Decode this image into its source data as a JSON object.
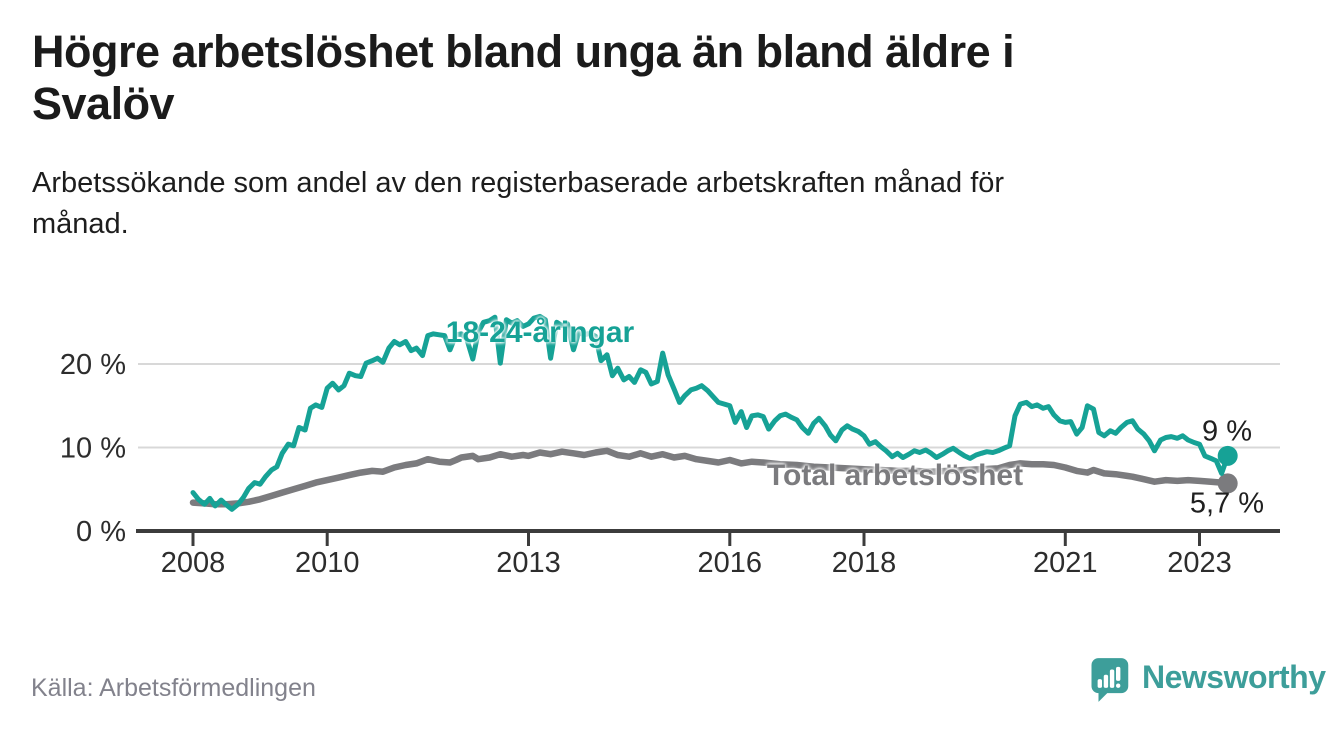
{
  "header": {
    "title": "Högre arbetslöshet bland unga än bland äldre i\nSvalöv",
    "subtitle": "Arbetssökande som andel av den registerbaserade arbetskraften månad för\nmånad."
  },
  "footer": {
    "source": "Källa: Arbetsförmedlingen",
    "brand": "Newsworthy"
  },
  "colors": {
    "youth": "#16a296",
    "total": "#7b7b7e",
    "grid": "#d8d8d8",
    "axis": "#3c3c3c",
    "tick_text": "#2d2d2d",
    "end_label_text": "#202020",
    "muted": "#82828c",
    "brand": "#3d9e9a"
  },
  "chart_data": {
    "type": "line",
    "unit": "%",
    "x_range": [
      2008.0,
      2023.42
    ],
    "ylim": [
      0,
      27
    ],
    "grid": "horizontal-only",
    "legend_position": "inline-labels",
    "yticks": [
      {
        "value": 0,
        "label": "0 %"
      },
      {
        "value": 10,
        "label": "10 %"
      },
      {
        "value": 20,
        "label": "20 %"
      }
    ],
    "xticks": [
      {
        "value": 2008,
        "label": "2008"
      },
      {
        "value": 2010,
        "label": "2010"
      },
      {
        "value": 2013,
        "label": "2013"
      },
      {
        "value": 2016,
        "label": "2016"
      },
      {
        "value": 2018,
        "label": "2018"
      },
      {
        "value": 2021,
        "label": "2021"
      },
      {
        "value": 2023,
        "label": "2023"
      }
    ],
    "series": [
      {
        "name": "18-24-åringar",
        "label": "18-24-åringar",
        "end_label": "9 %",
        "end_value": 9.0,
        "color_key": "youth",
        "stroke_width": 5,
        "points": [
          [
            2008.0,
            4.6
          ],
          [
            2008.08,
            3.8
          ],
          [
            2008.17,
            3.2
          ],
          [
            2008.25,
            3.9
          ],
          [
            2008.33,
            3.0
          ],
          [
            2008.42,
            3.7
          ],
          [
            2008.5,
            3.1
          ],
          [
            2008.58,
            2.6
          ],
          [
            2008.67,
            3.2
          ],
          [
            2008.75,
            4.0
          ],
          [
            2008.83,
            5.1
          ],
          [
            2008.92,
            5.8
          ],
          [
            2009.0,
            5.6
          ],
          [
            2009.08,
            6.5
          ],
          [
            2009.17,
            7.3
          ],
          [
            2009.25,
            7.7
          ],
          [
            2009.33,
            9.3
          ],
          [
            2009.42,
            10.4
          ],
          [
            2009.5,
            10.2
          ],
          [
            2009.58,
            12.4
          ],
          [
            2009.67,
            12.1
          ],
          [
            2009.75,
            14.7
          ],
          [
            2009.83,
            15.1
          ],
          [
            2009.92,
            14.8
          ],
          [
            2010.0,
            17.1
          ],
          [
            2010.08,
            17.7
          ],
          [
            2010.17,
            16.9
          ],
          [
            2010.25,
            17.4
          ],
          [
            2010.33,
            18.9
          ],
          [
            2010.42,
            18.6
          ],
          [
            2010.5,
            18.5
          ],
          [
            2010.58,
            20.1
          ],
          [
            2010.67,
            20.4
          ],
          [
            2010.75,
            20.7
          ],
          [
            2010.83,
            20.2
          ],
          [
            2010.92,
            21.9
          ],
          [
            2011.0,
            22.7
          ],
          [
            2011.08,
            22.3
          ],
          [
            2011.17,
            22.7
          ],
          [
            2011.25,
            21.6
          ],
          [
            2011.33,
            21.9
          ],
          [
            2011.42,
            21.0
          ],
          [
            2011.5,
            23.4
          ],
          [
            2011.58,
            23.6
          ],
          [
            2011.67,
            23.5
          ],
          [
            2011.75,
            23.4
          ],
          [
            2011.83,
            21.7
          ],
          [
            2011.92,
            23.5
          ],
          [
            2012.0,
            23.6
          ],
          [
            2012.08,
            23.0
          ],
          [
            2012.17,
            20.6
          ],
          [
            2012.25,
            23.8
          ],
          [
            2012.33,
            25.0
          ],
          [
            2012.42,
            25.2
          ],
          [
            2012.5,
            25.6
          ],
          [
            2012.58,
            20.1
          ],
          [
            2012.67,
            25.3
          ],
          [
            2012.75,
            24.9
          ],
          [
            2012.83,
            25.2
          ],
          [
            2012.92,
            24.5
          ],
          [
            2013.0,
            24.8
          ],
          [
            2013.08,
            25.5
          ],
          [
            2013.17,
            25.7
          ],
          [
            2013.25,
            25.3
          ],
          [
            2013.33,
            20.7
          ],
          [
            2013.42,
            25.0
          ],
          [
            2013.5,
            24.6
          ],
          [
            2013.58,
            24.8
          ],
          [
            2013.67,
            21.7
          ],
          [
            2013.75,
            23.8
          ],
          [
            2013.83,
            23.5
          ],
          [
            2013.92,
            23.7
          ],
          [
            2014.0,
            23.3
          ],
          [
            2014.08,
            20.4
          ],
          [
            2014.17,
            21.1
          ],
          [
            2014.25,
            18.6
          ],
          [
            2014.33,
            19.5
          ],
          [
            2014.42,
            18.1
          ],
          [
            2014.5,
            18.5
          ],
          [
            2014.58,
            17.8
          ],
          [
            2014.67,
            19.3
          ],
          [
            2014.75,
            19.0
          ],
          [
            2014.83,
            17.6
          ],
          [
            2014.92,
            17.9
          ],
          [
            2015.0,
            21.3
          ],
          [
            2015.08,
            18.7
          ],
          [
            2015.17,
            17.0
          ],
          [
            2015.25,
            15.4
          ],
          [
            2015.33,
            16.2
          ],
          [
            2015.42,
            16.9
          ],
          [
            2015.5,
            17.1
          ],
          [
            2015.58,
            17.4
          ],
          [
            2015.67,
            16.8
          ],
          [
            2015.75,
            16.1
          ],
          [
            2015.83,
            15.4
          ],
          [
            2015.92,
            15.2
          ],
          [
            2016.0,
            15.0
          ],
          [
            2016.08,
            13.0
          ],
          [
            2016.17,
            14.3
          ],
          [
            2016.25,
            12.4
          ],
          [
            2016.33,
            13.8
          ],
          [
            2016.42,
            13.9
          ],
          [
            2016.5,
            13.7
          ],
          [
            2016.58,
            12.2
          ],
          [
            2016.67,
            13.2
          ],
          [
            2016.75,
            13.8
          ],
          [
            2016.83,
            14.0
          ],
          [
            2016.92,
            13.6
          ],
          [
            2017.0,
            13.3
          ],
          [
            2017.08,
            12.4
          ],
          [
            2017.17,
            11.7
          ],
          [
            2017.25,
            12.9
          ],
          [
            2017.33,
            13.5
          ],
          [
            2017.42,
            12.6
          ],
          [
            2017.5,
            11.5
          ],
          [
            2017.58,
            10.8
          ],
          [
            2017.67,
            12.1
          ],
          [
            2017.75,
            12.6
          ],
          [
            2017.83,
            12.2
          ],
          [
            2017.92,
            11.9
          ],
          [
            2018.0,
            11.4
          ],
          [
            2018.08,
            10.4
          ],
          [
            2018.17,
            10.7
          ],
          [
            2018.25,
            10.1
          ],
          [
            2018.33,
            9.6
          ],
          [
            2018.42,
            8.9
          ],
          [
            2018.5,
            9.3
          ],
          [
            2018.58,
            8.8
          ],
          [
            2018.67,
            9.2
          ],
          [
            2018.75,
            9.6
          ],
          [
            2018.83,
            9.4
          ],
          [
            2018.92,
            9.7
          ],
          [
            2019.0,
            9.3
          ],
          [
            2019.08,
            8.8
          ],
          [
            2019.17,
            9.2
          ],
          [
            2019.25,
            9.6
          ],
          [
            2019.33,
            9.9
          ],
          [
            2019.42,
            9.4
          ],
          [
            2019.5,
            9.0
          ],
          [
            2019.58,
            8.7
          ],
          [
            2019.67,
            9.1
          ],
          [
            2019.75,
            9.3
          ],
          [
            2019.83,
            9.5
          ],
          [
            2019.92,
            9.4
          ],
          [
            2020.0,
            9.6
          ],
          [
            2020.08,
            9.9
          ],
          [
            2020.17,
            10.2
          ],
          [
            2020.25,
            13.8
          ],
          [
            2020.33,
            15.2
          ],
          [
            2020.42,
            15.4
          ],
          [
            2020.5,
            14.9
          ],
          [
            2020.58,
            15.1
          ],
          [
            2020.67,
            14.7
          ],
          [
            2020.75,
            14.9
          ],
          [
            2020.83,
            13.9
          ],
          [
            2020.92,
            13.2
          ],
          [
            2021.0,
            13.0
          ],
          [
            2021.08,
            13.1
          ],
          [
            2021.17,
            11.6
          ],
          [
            2021.25,
            12.4
          ],
          [
            2021.33,
            15.0
          ],
          [
            2021.42,
            14.6
          ],
          [
            2021.5,
            11.8
          ],
          [
            2021.58,
            11.4
          ],
          [
            2021.67,
            12.0
          ],
          [
            2021.75,
            11.7
          ],
          [
            2021.83,
            12.4
          ],
          [
            2021.92,
            13.0
          ],
          [
            2022.0,
            13.2
          ],
          [
            2022.08,
            12.2
          ],
          [
            2022.17,
            11.6
          ],
          [
            2022.25,
            10.8
          ],
          [
            2022.33,
            9.6
          ],
          [
            2022.42,
            10.9
          ],
          [
            2022.5,
            11.2
          ],
          [
            2022.58,
            11.3
          ],
          [
            2022.67,
            11.1
          ],
          [
            2022.75,
            11.4
          ],
          [
            2022.83,
            10.9
          ],
          [
            2022.92,
            10.6
          ],
          [
            2023.0,
            10.4
          ],
          [
            2023.08,
            9.0
          ],
          [
            2023.17,
            8.7
          ],
          [
            2023.25,
            8.4
          ],
          [
            2023.33,
            6.9
          ],
          [
            2023.42,
            9.0
          ]
        ]
      },
      {
        "name": "Total arbetslöshet",
        "label": "Total arbetslöshet",
        "end_label": "5,7 %",
        "end_value": 5.7,
        "color_key": "total",
        "stroke_width": 6.5,
        "points": [
          [
            2008.0,
            3.4
          ],
          [
            2008.17,
            3.3
          ],
          [
            2008.33,
            3.2
          ],
          [
            2008.5,
            3.2
          ],
          [
            2008.67,
            3.3
          ],
          [
            2008.83,
            3.5
          ],
          [
            2009.0,
            3.8
          ],
          [
            2009.17,
            4.2
          ],
          [
            2009.33,
            4.6
          ],
          [
            2009.5,
            5.0
          ],
          [
            2009.67,
            5.4
          ],
          [
            2009.83,
            5.8
          ],
          [
            2010.0,
            6.1
          ],
          [
            2010.17,
            6.4
          ],
          [
            2010.33,
            6.7
          ],
          [
            2010.5,
            7.0
          ],
          [
            2010.67,
            7.2
          ],
          [
            2010.83,
            7.1
          ],
          [
            2011.0,
            7.6
          ],
          [
            2011.17,
            7.9
          ],
          [
            2011.33,
            8.1
          ],
          [
            2011.5,
            8.6
          ],
          [
            2011.67,
            8.3
          ],
          [
            2011.83,
            8.2
          ],
          [
            2011.92,
            8.5
          ],
          [
            2012.0,
            8.8
          ],
          [
            2012.17,
            9.0
          ],
          [
            2012.25,
            8.6
          ],
          [
            2012.42,
            8.8
          ],
          [
            2012.58,
            9.2
          ],
          [
            2012.75,
            8.9
          ],
          [
            2012.92,
            9.1
          ],
          [
            2013.0,
            9.0
          ],
          [
            2013.17,
            9.4
          ],
          [
            2013.33,
            9.2
          ],
          [
            2013.5,
            9.5
          ],
          [
            2013.67,
            9.3
          ],
          [
            2013.83,
            9.1
          ],
          [
            2014.0,
            9.4
          ],
          [
            2014.17,
            9.6
          ],
          [
            2014.33,
            9.1
          ],
          [
            2014.5,
            8.9
          ],
          [
            2014.67,
            9.3
          ],
          [
            2014.83,
            8.9
          ],
          [
            2015.0,
            9.2
          ],
          [
            2015.17,
            8.8
          ],
          [
            2015.33,
            9.0
          ],
          [
            2015.5,
            8.6
          ],
          [
            2015.67,
            8.4
          ],
          [
            2015.83,
            8.2
          ],
          [
            2016.0,
            8.5
          ],
          [
            2016.17,
            8.1
          ],
          [
            2016.33,
            8.3
          ],
          [
            2016.5,
            8.2
          ],
          [
            2016.75,
            8.0
          ],
          [
            2017.0,
            7.9
          ],
          [
            2017.25,
            7.7
          ],
          [
            2017.5,
            7.6
          ],
          [
            2017.75,
            7.5
          ],
          [
            2018.0,
            7.4
          ],
          [
            2018.25,
            7.3
          ],
          [
            2018.5,
            7.2
          ],
          [
            2018.75,
            7.2
          ],
          [
            2019.0,
            7.1
          ],
          [
            2019.25,
            7.2
          ],
          [
            2019.5,
            7.3
          ],
          [
            2019.75,
            7.4
          ],
          [
            2020.0,
            7.5
          ],
          [
            2020.17,
            7.9
          ],
          [
            2020.33,
            8.1
          ],
          [
            2020.5,
            8.0
          ],
          [
            2020.67,
            8.0
          ],
          [
            2020.83,
            7.9
          ],
          [
            2021.0,
            7.6
          ],
          [
            2021.17,
            7.2
          ],
          [
            2021.33,
            7.0
          ],
          [
            2021.42,
            7.3
          ],
          [
            2021.58,
            6.9
          ],
          [
            2021.75,
            6.8
          ],
          [
            2021.92,
            6.6
          ],
          [
            2022.0,
            6.5
          ],
          [
            2022.17,
            6.2
          ],
          [
            2022.33,
            5.9
          ],
          [
            2022.5,
            6.1
          ],
          [
            2022.67,
            6.0
          ],
          [
            2022.83,
            6.1
          ],
          [
            2023.0,
            6.0
          ],
          [
            2023.17,
            5.9
          ],
          [
            2023.33,
            5.8
          ],
          [
            2023.42,
            5.7
          ]
        ]
      }
    ]
  }
}
